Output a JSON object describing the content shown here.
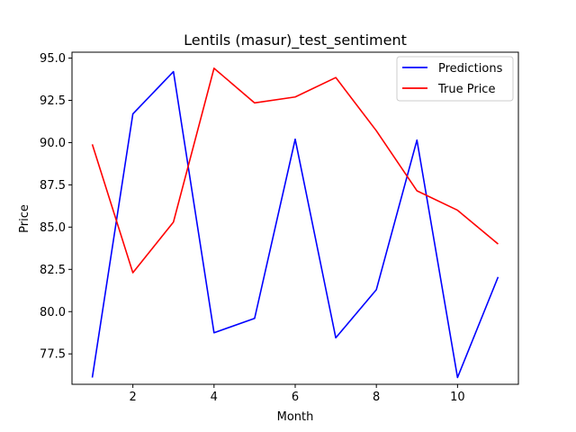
{
  "chart_data": {
    "type": "line",
    "title": "Lentils (masur)_test_sentiment",
    "xlabel": "Month",
    "ylabel": "Price",
    "xlim": [
      0.5,
      11.5
    ],
    "ylim": [
      75.7,
      95.35
    ],
    "xticks": [
      2,
      4,
      6,
      8,
      10
    ],
    "xtick_labels": [
      "2",
      "4",
      "6",
      "8",
      "10"
    ],
    "yticks": [
      77.5,
      80.0,
      82.5,
      85.0,
      87.5,
      90.0,
      92.5,
      95.0
    ],
    "ytick_labels": [
      "77.5",
      "80.0",
      "82.5",
      "85.0",
      "87.5",
      "90.0",
      "92.5",
      "95.0"
    ],
    "grid": false,
    "legend_position": "top-right",
    "x": [
      1,
      2,
      3,
      4,
      5,
      6,
      7,
      8,
      9,
      10,
      11
    ],
    "series": [
      {
        "name": "Predictions",
        "color": "#0000ff",
        "values": [
          76.1,
          91.7,
          94.2,
          78.75,
          79.6,
          90.2,
          78.45,
          81.3,
          90.15,
          76.1,
          82.05
        ]
      },
      {
        "name": "True Price",
        "color": "#ff0000",
        "values": [
          89.9,
          82.3,
          85.3,
          94.4,
          92.35,
          92.7,
          93.85,
          90.7,
          87.15,
          86.0,
          84.0
        ]
      }
    ]
  }
}
